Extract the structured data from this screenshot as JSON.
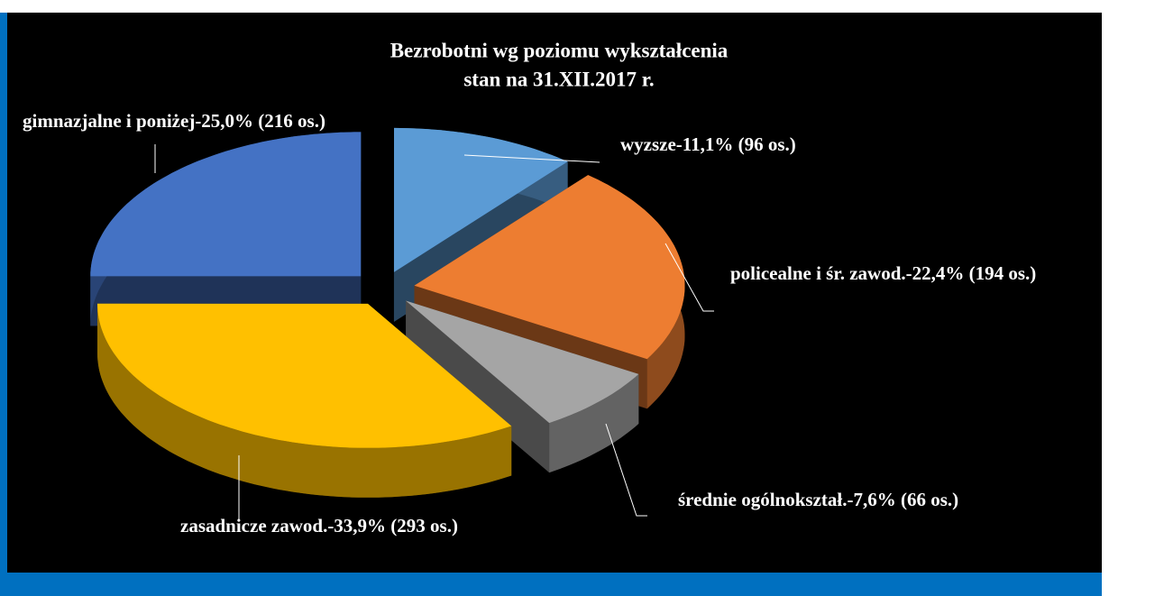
{
  "chart_data": {
    "type": "pie",
    "title": [
      "Bezrobotni wg poziomu wykształcenia",
      "stan na 31.XII.2017 r."
    ],
    "categories": [
      "wyzsze-11,1% (96 os.)",
      "policealne i śr. zawod.-22,4% (194 os.)",
      "średnie ogólnokształ.-7,6% (66 os.)",
      "zasadnicze zawod.-33,9% (293 os.)",
      "gimnazjalne i poniżej-25,0% (216 os.)"
    ],
    "values": [
      11.1,
      22.4,
      7.6,
      33.9,
      25.0
    ],
    "colors": [
      "#5b9bd5",
      "#ed7d31",
      "#a5a5a5",
      "#ffc000",
      "#4472c4"
    ]
  }
}
